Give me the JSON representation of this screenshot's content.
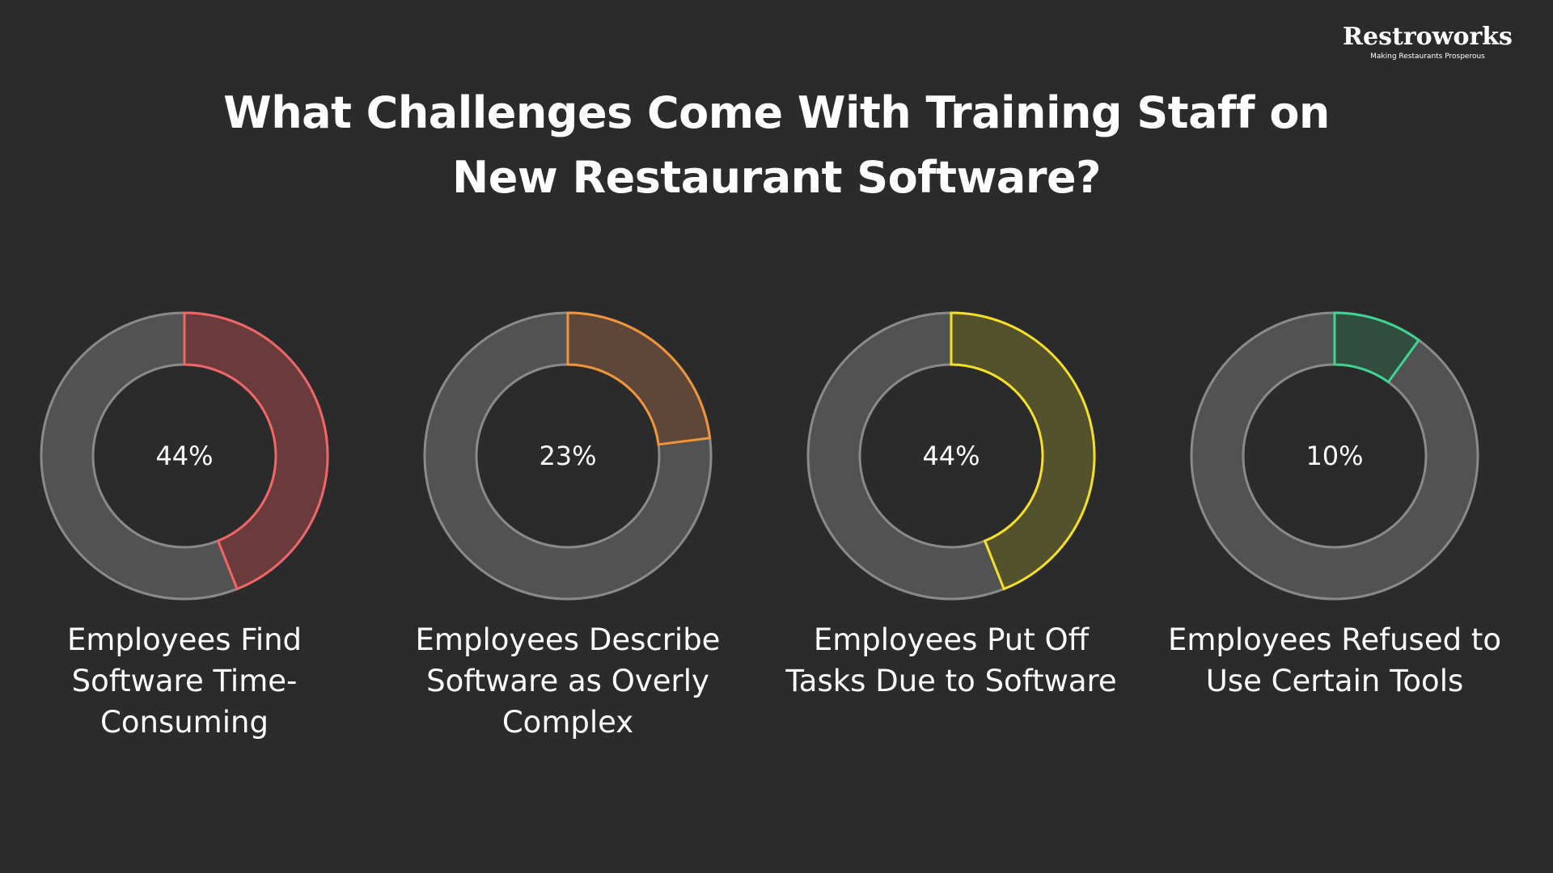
{
  "page": {
    "title_lines": [
      "What Challenges Come With Training Staff on",
      "New Restaurant Software?"
    ],
    "background": "#2b2b2b"
  },
  "logo": {
    "wordmark": "Restroworks",
    "tagline": "Making Restaurants Prosperous"
  },
  "chart_data": {
    "type": "pie",
    "variant": "donut",
    "track_color": "#525252",
    "track_stroke": "#8a8a8a",
    "items": [
      {
        "label": "Employees Find\nSoftware Time-\nConsuming",
        "value": 44,
        "display": "44%",
        "color": "#f06565",
        "fill": "#6b3a3c"
      },
      {
        "label": "Employees Describe\nSoftware as Overly\nComplex",
        "value": 23,
        "display": "23%",
        "color": "#f2953a",
        "fill": "#5e4738"
      },
      {
        "label": "Employees Put Off\nTasks Due to Software",
        "value": 44,
        "display": "44%",
        "color": "#f5e027",
        "fill": "#54512d"
      },
      {
        "label": "Employees Refused to\nUse Certain Tools",
        "value": 10,
        "display": "10%",
        "color": "#3fd492",
        "fill": "#314d3f"
      }
    ]
  }
}
